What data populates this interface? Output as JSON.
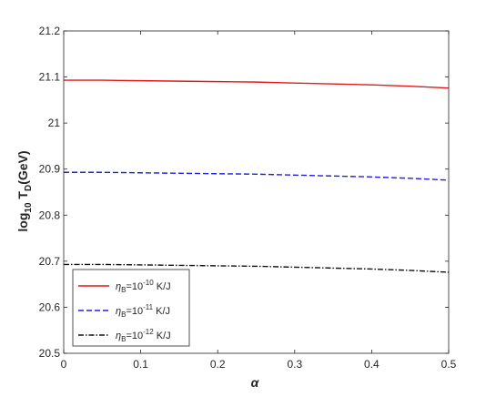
{
  "chart_data": {
    "type": "line",
    "xlabel": "α",
    "ylabel": {
      "base": "log",
      "base_sub": "10",
      "var": " T",
      "var_sub": "D",
      "unit": "(GeV)"
    },
    "xlim": [
      0,
      0.5
    ],
    "ylim": [
      20.5,
      21.2
    ],
    "x_ticks": [
      "0",
      "0.1",
      "0.2",
      "0.3",
      "0.4",
      "0.5"
    ],
    "y_ticks": [
      "20.5",
      "20.6",
      "20.7",
      "20.8",
      "20.9",
      "21",
      "21.1",
      "21.2"
    ],
    "grid": false,
    "legend_position": "bottom-left",
    "x": [
      0,
      0.05,
      0.1,
      0.15,
      0.2,
      0.25,
      0.3,
      0.35,
      0.4,
      0.45,
      0.5
    ],
    "series": [
      {
        "name": "η_B=10^-10 K/J",
        "legend": {
          "sym": "η",
          "sub": "B",
          "mid": "=10",
          "exp": "-10",
          "unit": " K/J"
        },
        "color": "#e41a1c",
        "dash": "solid",
        "values": [
          21.093,
          21.093,
          21.092,
          21.091,
          21.09,
          21.089,
          21.087,
          21.085,
          21.083,
          21.08,
          21.076
        ]
      },
      {
        "name": "η_B=10^-11 K/J",
        "legend": {
          "sym": "η",
          "sub": "B",
          "mid": "=10",
          "exp": "-11",
          "unit": " K/J"
        },
        "color": "#1f1fe0",
        "dash": "dashed",
        "values": [
          20.893,
          20.893,
          20.892,
          20.891,
          20.89,
          20.889,
          20.887,
          20.885,
          20.883,
          20.88,
          20.876
        ]
      },
      {
        "name": "η_B=10^-12 K/J",
        "legend": {
          "sym": "η",
          "sub": "B",
          "mid": "=10",
          "exp": "-12",
          "unit": " K/J"
        },
        "color": "#111111",
        "dash": "dashdot",
        "values": [
          20.693,
          20.693,
          20.692,
          20.691,
          20.69,
          20.689,
          20.687,
          20.685,
          20.683,
          20.68,
          20.676
        ]
      }
    ]
  }
}
